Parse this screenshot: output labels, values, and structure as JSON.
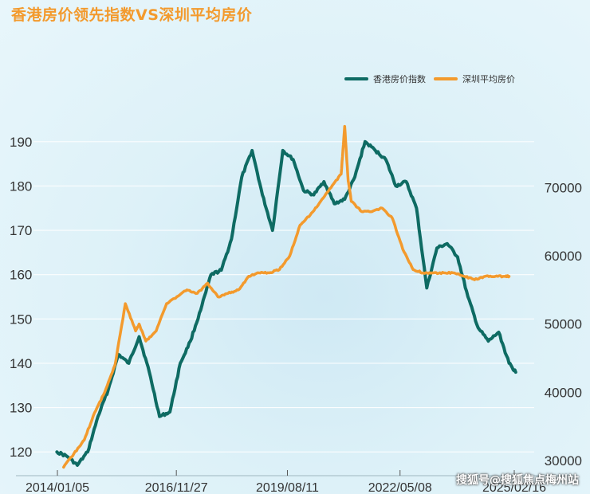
{
  "title": "香港房价领先指数VS深圳平均房价",
  "watermark": "搜狐号@搜狐焦点梅州站",
  "chart_data": {
    "type": "line",
    "title": "香港房价领先指数VS深圳平均房价",
    "x_ticks": [
      "2014/01/05",
      "2016/11/27",
      "2019/08/11",
      "2022/05/08",
      "2025/02/16"
    ],
    "x_range": [
      "2014-01-05",
      "2025-02-16"
    ],
    "yleft_ticks": [
      120,
      130,
      140,
      150,
      160,
      170,
      180,
      190
    ],
    "yleft_range": [
      115,
      195
    ],
    "yright_ticks": [
      30000,
      40000,
      50000,
      60000,
      70000
    ],
    "yright_range": [
      28000,
      80000
    ],
    "legend_position": "top-right",
    "grid": "horizontal",
    "series": [
      {
        "name": "香港房价指数",
        "axis": "left",
        "color": "#0e6b63",
        "x": [
          "2014-01",
          "2014-04",
          "2014-07",
          "2014-10",
          "2015-01",
          "2015-04",
          "2015-07",
          "2015-10",
          "2016-01",
          "2016-04",
          "2016-07",
          "2016-10",
          "2017-01",
          "2017-04",
          "2017-07",
          "2017-10",
          "2018-01",
          "2018-04",
          "2018-07",
          "2018-10",
          "2019-01",
          "2019-04",
          "2019-07",
          "2019-10",
          "2020-01",
          "2020-04",
          "2020-07",
          "2020-10",
          "2021-01",
          "2021-04",
          "2021-07",
          "2021-10",
          "2022-01",
          "2022-04",
          "2022-07",
          "2022-10",
          "2023-01",
          "2023-04",
          "2023-07",
          "2023-10",
          "2024-01",
          "2024-04",
          "2024-07",
          "2024-10",
          "2025-01",
          "2025-03"
        ],
        "y": [
          120,
          119,
          117,
          120,
          128,
          134,
          142,
          140,
          146,
          138,
          128,
          129,
          140,
          145,
          152,
          160,
          161,
          168,
          182,
          188,
          178,
          170,
          188,
          186,
          179,
          178,
          181,
          176,
          177,
          182,
          190,
          188,
          186,
          180,
          181,
          175,
          157,
          166,
          167,
          164,
          155,
          148,
          145,
          147,
          140,
          138
        ]
      },
      {
        "name": "深圳平均房价",
        "axis": "right",
        "color": "#f39a2d",
        "x": [
          "2014-03",
          "2014-06",
          "2014-09",
          "2014-12",
          "2015-03",
          "2015-06",
          "2015-09",
          "2015-12",
          "2016-01",
          "2016-03",
          "2016-06",
          "2016-09",
          "2016-12",
          "2017-03",
          "2017-06",
          "2017-09",
          "2017-12",
          "2018-03",
          "2018-06",
          "2018-09",
          "2018-12",
          "2019-03",
          "2019-06",
          "2019-09",
          "2019-12",
          "2020-03",
          "2020-06",
          "2020-09",
          "2020-12",
          "2021-01",
          "2021-02",
          "2021-03",
          "2021-06",
          "2021-09",
          "2021-12",
          "2022-03",
          "2022-06",
          "2022-09",
          "2022-12",
          "2023-03",
          "2023-06",
          "2023-09",
          "2023-12",
          "2024-03",
          "2024-06",
          "2024-09",
          "2024-12",
          "2025-01"
        ],
        "y": [
          29000,
          31000,
          33000,
          37000,
          40000,
          44000,
          53000,
          49000,
          50000,
          47500,
          49000,
          53000,
          54000,
          55000,
          54500,
          56000,
          54000,
          54500,
          55000,
          57000,
          57500,
          57500,
          58000,
          60000,
          64500,
          66000,
          68000,
          70000,
          72000,
          79000,
          71000,
          68000,
          66500,
          66500,
          67000,
          65500,
          61000,
          58000,
          57500,
          57500,
          57500,
          57500,
          57000,
          56500,
          57000,
          57000,
          57000,
          57000
        ]
      }
    ]
  }
}
